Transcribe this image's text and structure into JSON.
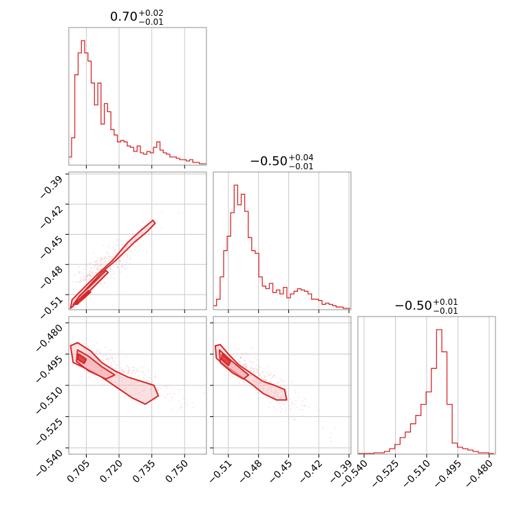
{
  "chart_data": {
    "type": "scatter",
    "kind": "corner",
    "color": "#d62728",
    "fill_color": "#f4a6ab",
    "grid": true,
    "parameters": [
      {
        "key": "p0",
        "range": [
          0.697,
          0.76
        ],
        "ticks": [
          0.705,
          0.72,
          0.735,
          0.75
        ],
        "tick_labels": [
          "0.705",
          "0.720",
          "0.735",
          "0.750"
        ],
        "title": {
          "main": "0.70",
          "sup": "+0.02",
          "sub": "−0.01"
        },
        "hist": {
          "bins": [
            0.6975,
            0.699,
            0.7005,
            0.702,
            0.7035,
            0.705,
            0.7065,
            0.708,
            0.7095,
            0.711,
            0.7125,
            0.714,
            0.7155,
            0.717,
            0.7185,
            0.72,
            0.7215,
            0.723,
            0.7245,
            0.726,
            0.7275,
            0.729,
            0.7305,
            0.732,
            0.7335,
            0.735,
            0.7365,
            0.738,
            0.7395,
            0.741,
            0.7425,
            0.744,
            0.7455,
            0.747,
            0.7485,
            0.75,
            0.7515,
            0.753,
            0.7545,
            0.756,
            0.7575,
            0.759
          ],
          "counts": [
            0.06,
            0.2,
            0.66,
            0.82,
            0.91,
            0.82,
            0.76,
            0.6,
            0.44,
            0.6,
            0.3,
            0.45,
            0.39,
            0.26,
            0.22,
            0.17,
            0.18,
            0.17,
            0.14,
            0.13,
            0.1,
            0.14,
            0.09,
            0.08,
            0.1,
            0.09,
            0.13,
            0.17,
            0.11,
            0.09,
            0.08,
            0.06,
            0.06,
            0.05,
            0.04,
            0.04,
            0.03,
            0.04,
            0.02,
            0.02,
            0.01,
            0.01
          ]
        }
      },
      {
        "key": "p1",
        "range": [
          -0.525,
          -0.388
        ],
        "ticks": [
          -0.51,
          -0.48,
          -0.45,
          -0.42,
          -0.39
        ],
        "tick_labels": [
          "−0.51",
          "−0.48",
          "−0.45",
          "−0.42",
          "−0.39"
        ],
        "title": {
          "main": "−0.50",
          "sup": "+0.04",
          "sub": "−0.01"
        },
        "hist": {
          "bins": [
            -0.5235,
            -0.52,
            -0.5165,
            -0.513,
            -0.5095,
            -0.506,
            -0.5025,
            -0.499,
            -0.4955,
            -0.492,
            -0.4885,
            -0.485,
            -0.4815,
            -0.478,
            -0.4745,
            -0.471,
            -0.4675,
            -0.464,
            -0.4605,
            -0.457,
            -0.4535,
            -0.45,
            -0.4465,
            -0.443,
            -0.4395,
            -0.436,
            -0.4325,
            -0.429,
            -0.4255,
            -0.422,
            -0.4185,
            -0.415,
            -0.4115,
            -0.408,
            -0.4045,
            -0.401,
            -0.3975,
            -0.394,
            -0.3905
          ],
          "counts": [
            0.03,
            0.08,
            0.25,
            0.45,
            0.56,
            0.74,
            0.95,
            0.8,
            0.88,
            0.75,
            0.55,
            0.45,
            0.43,
            0.25,
            0.18,
            0.16,
            0.2,
            0.13,
            0.15,
            0.12,
            0.17,
            0.09,
            0.12,
            0.14,
            0.16,
            0.15,
            0.14,
            0.12,
            0.08,
            0.08,
            0.07,
            0.04,
            0.05,
            0.04,
            0.03,
            0.02,
            0.02,
            0.01,
            0.01
          ]
        }
      },
      {
        "key": "p2",
        "range": [
          -0.543,
          -0.477
        ],
        "ticks": [
          -0.54,
          -0.525,
          -0.51,
          -0.495,
          -0.48
        ],
        "tick_labels": [
          "−0.540",
          "−0.525",
          "−0.510",
          "−0.495",
          "−0.480"
        ],
        "title": {
          "main": "−0.50",
          "sup": "+0.01",
          "sub": "−0.01"
        },
        "hist": {
          "bins": [
            -0.5415,
            -0.539,
            -0.5365,
            -0.534,
            -0.5315,
            -0.529,
            -0.5265,
            -0.524,
            -0.5215,
            -0.519,
            -0.5165,
            -0.514,
            -0.5115,
            -0.509,
            -0.5065,
            -0.504,
            -0.5015,
            -0.499,
            -0.4965,
            -0.494,
            -0.4915,
            -0.489,
            -0.4865,
            -0.484,
            -0.4815,
            -0.479
          ],
          "counts": [
            0.005,
            0.005,
            0.005,
            0.01,
            0.01,
            0.02,
            0.04,
            0.07,
            0.12,
            0.16,
            0.22,
            0.28,
            0.36,
            0.45,
            0.62,
            0.9,
            0.74,
            0.36,
            0.08,
            0.05,
            0.04,
            0.03,
            0.02,
            0.01,
            0.01,
            0.005
          ]
        }
      }
    ],
    "pairs": [
      {
        "x": "p0",
        "y": "p1",
        "center": [
          0.704,
          -0.5
        ],
        "direction": [
          0.0204,
          0.0405
        ],
        "spread": [
          0.011,
          0.0028
        ],
        "contours": [
          [
            [
              0.6978,
              -0.5235
            ],
            [
              0.6985,
              -0.515
            ],
            [
              0.704,
              -0.503
            ],
            [
              0.71,
              -0.49
            ],
            [
              0.717,
              -0.476
            ],
            [
              0.724,
              -0.458
            ],
            [
              0.73,
              -0.446
            ],
            [
              0.7355,
              -0.436
            ],
            [
              0.7365,
              -0.439
            ],
            [
              0.733,
              -0.447
            ],
            [
              0.727,
              -0.458
            ],
            [
              0.719,
              -0.475
            ],
            [
              0.712,
              -0.488
            ],
            [
              0.706,
              -0.502
            ],
            [
              0.701,
              -0.514
            ],
            [
              0.699,
              -0.5215
            ]
          ],
          [
            [
              0.699,
              -0.52
            ],
            [
              0.702,
              -0.511
            ],
            [
              0.707,
              -0.501
            ],
            [
              0.714,
              -0.486
            ],
            [
              0.715,
              -0.488
            ],
            [
              0.709,
              -0.501
            ],
            [
              0.704,
              -0.512
            ],
            [
              0.701,
              -0.5195
            ]
          ],
          [
            [
              0.7,
              -0.5185
            ],
            [
              0.703,
              -0.512
            ],
            [
              0.706,
              -0.506
            ],
            [
              0.707,
              -0.5075
            ],
            [
              0.704,
              -0.5135
            ],
            [
              0.7015,
              -0.518
            ]
          ]
        ]
      },
      {
        "x": "p0",
        "y": "p2",
        "center": [
          0.704,
          -0.497
        ],
        "direction": [
          0.036,
          -0.016
        ],
        "spread": [
          0.0115,
          0.0035
        ],
        "contours": [
          [
            [
              0.6978,
              -0.491
            ],
            [
              0.701,
              -0.4895
            ],
            [
              0.707,
              -0.4935
            ],
            [
              0.712,
              -0.499
            ],
            [
              0.718,
              -0.503
            ],
            [
              0.724,
              -0.506
            ],
            [
              0.73,
              -0.508
            ],
            [
              0.736,
              -0.51
            ],
            [
              0.738,
              -0.515
            ],
            [
              0.732,
              -0.519
            ],
            [
              0.726,
              -0.516
            ],
            [
              0.719,
              -0.511
            ],
            [
              0.712,
              -0.506
            ],
            [
              0.705,
              -0.502
            ],
            [
              0.699,
              -0.499
            ]
          ],
          [
            [
              0.701,
              -0.493
            ],
            [
              0.706,
              -0.496
            ],
            [
              0.712,
              -0.501
            ],
            [
              0.718,
              -0.505
            ],
            [
              0.714,
              -0.507
            ],
            [
              0.706,
              -0.503
            ],
            [
              0.7005,
              -0.4985
            ]
          ],
          [
            [
              0.7015,
              -0.495
            ],
            [
              0.705,
              -0.4975
            ],
            [
              0.704,
              -0.4995
            ],
            [
              0.701,
              -0.4975
            ]
          ]
        ]
      },
      {
        "x": "p1",
        "y": "p2",
        "center": [
          -0.506,
          -0.498
        ],
        "direction": [
          0.06,
          -0.02
        ],
        "spread": [
          0.0115,
          0.0033
        ],
        "contours": [
          [
            [
              -0.523,
              -0.491
            ],
            [
              -0.518,
              -0.4905
            ],
            [
              -0.51,
              -0.495
            ],
            [
              -0.5,
              -0.5
            ],
            [
              -0.488,
              -0.504
            ],
            [
              -0.476,
              -0.508
            ],
            [
              -0.464,
              -0.51
            ],
            [
              -0.454,
              -0.512
            ],
            [
              -0.452,
              -0.517
            ],
            [
              -0.462,
              -0.517
            ],
            [
              -0.475,
              -0.514
            ],
            [
              -0.488,
              -0.509
            ],
            [
              -0.5,
              -0.505
            ],
            [
              -0.512,
              -0.501
            ],
            [
              -0.522,
              -0.497
            ]
          ],
          [
            [
              -0.519,
              -0.493
            ],
            [
              -0.51,
              -0.497
            ],
            [
              -0.5,
              -0.501
            ],
            [
              -0.49,
              -0.505
            ],
            [
              -0.495,
              -0.507
            ],
            [
              -0.506,
              -0.504
            ],
            [
              -0.518,
              -0.499
            ]
          ],
          [
            [
              -0.516,
              -0.495
            ],
            [
              -0.508,
              -0.4985
            ],
            [
              -0.51,
              -0.5005
            ],
            [
              -0.517,
              -0.4975
            ]
          ]
        ]
      }
    ],
    "scatter_points": 320
  }
}
